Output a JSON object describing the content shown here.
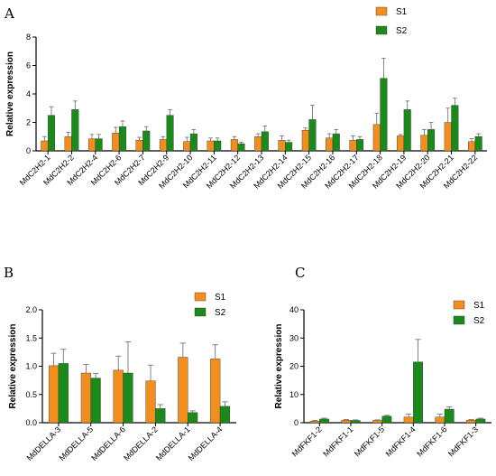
{
  "colors": {
    "S1": "#f28e1e",
    "S2": "#1a8a1a",
    "axis": "#000000",
    "error": "#666666"
  },
  "chart_data": [
    {
      "panel": "A",
      "type": "bar",
      "ylabel": "Relative expression",
      "ylim": [
        0,
        8
      ],
      "yticks": [
        0,
        2,
        4,
        6,
        8
      ],
      "categories": [
        "MdC2H2-1",
        "MdC2H2-2",
        "MdC2H2-4",
        "MdC2H2-6",
        "MdC2H2-7",
        "MdC2H2-9",
        "MdC2H2-10",
        "MdC2H2-11",
        "MdC2H2-12",
        "MdC2H2-13",
        "MdC2H2-14",
        "MdC2H2-15",
        "MdC2H2-16",
        "MdC2H2-17",
        "MdC2H2-18",
        "MdC2H2-19",
        "MdC2H2-20",
        "MdC2H2-21",
        "MdC2H2-22"
      ],
      "series": [
        {
          "name": "S1",
          "values": [
            0.7,
            1.0,
            0.85,
            1.25,
            0.75,
            0.8,
            0.65,
            0.7,
            0.8,
            1.0,
            0.75,
            1.45,
            0.9,
            0.75,
            1.85,
            1.05,
            1.1,
            2.0,
            0.65
          ],
          "errors": [
            0.3,
            0.3,
            0.3,
            0.4,
            0.2,
            0.2,
            0.3,
            0.2,
            0.2,
            0.2,
            0.3,
            0.15,
            0.3,
            0.3,
            0.8,
            0.1,
            0.4,
            1.0,
            0.2
          ]
        },
        {
          "name": "S2",
          "values": [
            2.5,
            2.9,
            0.85,
            1.7,
            1.4,
            2.5,
            1.2,
            0.7,
            0.5,
            1.35,
            0.6,
            2.2,
            1.2,
            0.8,
            5.1,
            2.9,
            1.5,
            3.2,
            1.0
          ],
          "errors": [
            0.6,
            0.6,
            0.3,
            0.4,
            0.3,
            0.4,
            0.3,
            0.2,
            0.1,
            0.4,
            0.15,
            1.0,
            0.3,
            0.2,
            1.4,
            0.6,
            0.5,
            0.5,
            0.2
          ]
        }
      ]
    },
    {
      "panel": "B",
      "type": "bar",
      "ylabel": "Relative expression",
      "ylim": [
        0,
        2.0
      ],
      "yticks": [
        "0.0",
        "0.5",
        "1.0",
        "1.5",
        "2.0"
      ],
      "categories": [
        "MdDELLA-3",
        "MdDELLA-5",
        "MdDELLA-6",
        "MdDELLA-2",
        "MdDELLA-1",
        "MdDELLA-4"
      ],
      "series": [
        {
          "name": "S1",
          "values": [
            1.01,
            0.88,
            0.93,
            0.74,
            1.16,
            1.13
          ],
          "errors": [
            0.22,
            0.15,
            0.25,
            0.28,
            0.25,
            0.25
          ]
        },
        {
          "name": "S2",
          "values": [
            1.05,
            0.79,
            0.88,
            0.25,
            0.18,
            0.29
          ],
          "errors": [
            0.25,
            0.08,
            0.55,
            0.07,
            0.03,
            0.08
          ]
        }
      ]
    },
    {
      "panel": "C",
      "type": "bar",
      "ylabel": "Relative expression",
      "ylim": [
        0,
        40
      ],
      "yticks": [
        0,
        10,
        20,
        30,
        40
      ],
      "categories": [
        "MdFKF1-2",
        "MdFKF1-1",
        "MdFKF1-5",
        "MdFKF1-4",
        "MdFKF1-6",
        "MdFKF1-3"
      ],
      "series": [
        {
          "name": "S1",
          "values": [
            0.6,
            0.9,
            0.8,
            2.0,
            2.0,
            0.9
          ],
          "errors": [
            0.2,
            0.2,
            0.2,
            1.0,
            1.0,
            0.2
          ]
        },
        {
          "name": "S2",
          "values": [
            1.3,
            0.8,
            2.3,
            21.5,
            4.8,
            1.3
          ],
          "errors": [
            0.3,
            0.2,
            0.3,
            8.0,
            0.8,
            0.3
          ]
        }
      ]
    }
  ]
}
